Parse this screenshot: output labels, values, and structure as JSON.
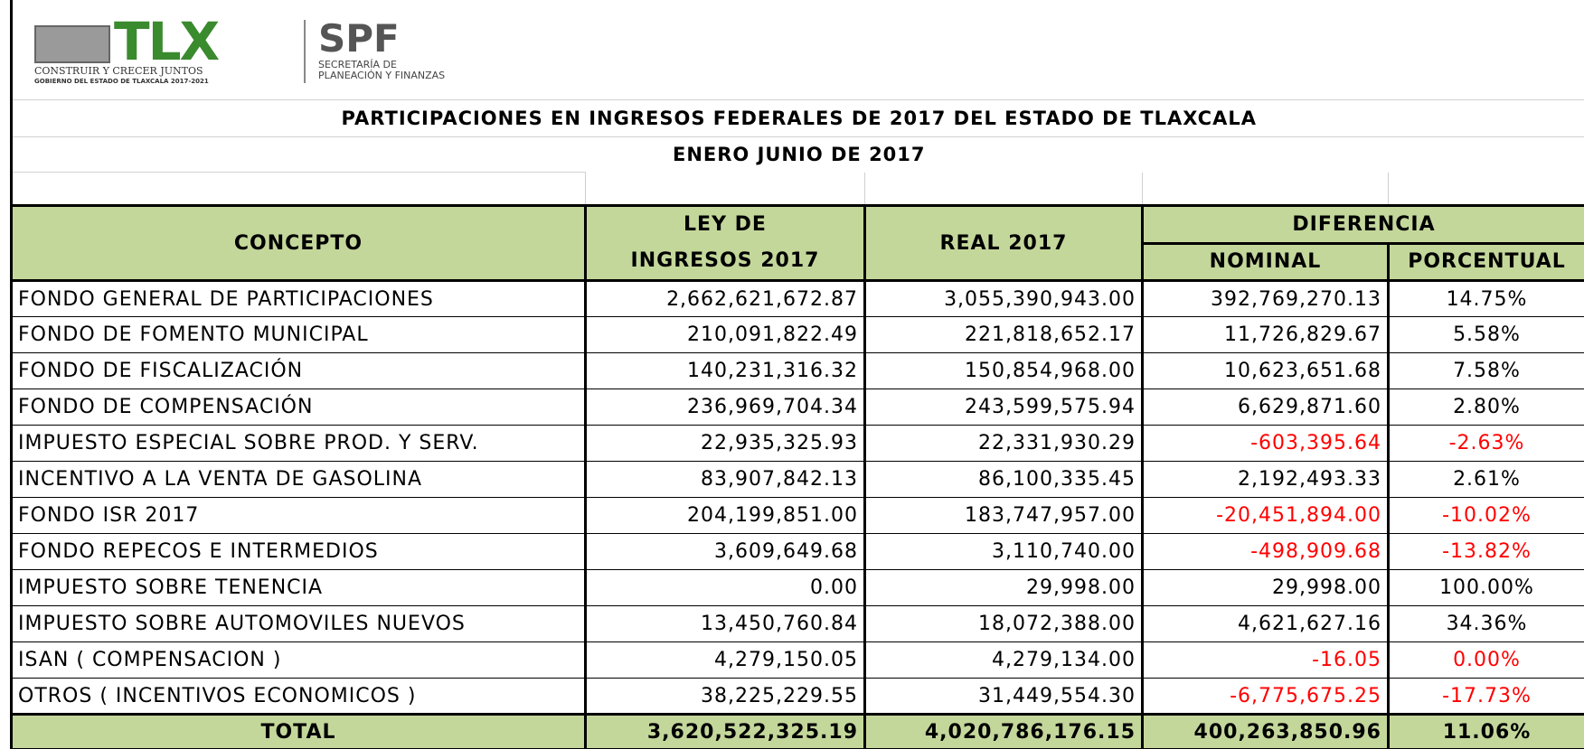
{
  "logo": {
    "brand": "TLX",
    "slogan": "CONSTRUIR Y CRECER JUNTOS",
    "government": "GOBIERNO DEL ESTADO DE TLAXCALA 2017-2021",
    "agency": "SPF",
    "agency_line1": "SECRETARÍA DE",
    "agency_line2": "PLANEACIÓN Y FINANZAS"
  },
  "title": "PARTICIPACIONES EN INGRESOS FEDERALES DE 2017 DEL ESTADO DE TLAXCALA",
  "subtitle": "ENERO JUNIO DE 2017",
  "header": {
    "concepto": "CONCEPTO",
    "ley": "LEY DE INGRESOS 2017",
    "real": "REAL 2017",
    "diferencia": "DIFERENCIA",
    "nominal": "NOMINAL",
    "porcentual": "PORCENTUAL"
  },
  "header_color": "#c4d79b",
  "rows": [
    {
      "concepto": "FONDO GENERAL DE PARTICIPACIONES",
      "ley": "2,662,621,672.87",
      "real": "3,055,390,943.00",
      "nominal": "392,769,270.13",
      "porcentual": "14.75%"
    },
    {
      "concepto": "FONDO DE FOMENTO MUNICIPAL",
      "ley": "210,091,822.49",
      "real": "221,818,652.17",
      "nominal": "11,726,829.67",
      "porcentual": "5.58%"
    },
    {
      "concepto": "FONDO DE FISCALIZACIÓN",
      "ley": "140,231,316.32",
      "real": "150,854,968.00",
      "nominal": "10,623,651.68",
      "porcentual": "7.58%"
    },
    {
      "concepto": "FONDO DE COMPENSACIÓN",
      "ley": "236,969,704.34",
      "real": "243,599,575.94",
      "nominal": "6,629,871.60",
      "porcentual": "2.80%"
    },
    {
      "concepto": "IMPUESTO ESPECIAL SOBRE PROD. Y SERV.",
      "ley": "22,935,325.93",
      "real": "22,331,930.29",
      "nominal": "-603,395.64",
      "porcentual": "-2.63%",
      "color": "#ff0000"
    },
    {
      "concepto": "INCENTIVO A LA VENTA DE GASOLINA",
      "ley": "83,907,842.13",
      "real": "86,100,335.45",
      "nominal": "2,192,493.33",
      "porcentual": "2.61%"
    },
    {
      "concepto": "FONDO ISR  2017",
      "ley": "204,199,851.00",
      "real": "183,747,957.00",
      "nominal": "-20,451,894.00",
      "porcentual": "-10.02%",
      "color": "#ff0000"
    },
    {
      "concepto": "FONDO REPECOS E INTERMEDIOS",
      "ley": "3,609,649.68",
      "real": "3,110,740.00",
      "nominal": "-498,909.68",
      "porcentual": "-13.82%",
      "color": "#ff0000"
    },
    {
      "concepto": "IMPUESTO SOBRE TENENCIA",
      "ley": "0.00",
      "real": "29,998.00",
      "nominal": "29,998.00",
      "porcentual": "100.00%"
    },
    {
      "concepto": "IMPUESTO SOBRE AUTOMOVILES NUEVOS",
      "ley": "13,450,760.84",
      "real": "18,072,388.00",
      "nominal": "4,621,627.16",
      "porcentual": "34.36%"
    },
    {
      "concepto": "ISAN ( COMPENSACION )",
      "ley": "4,279,150.05",
      "real": "4,279,134.00",
      "nominal": "-16.05",
      "porcentual": "0.00%",
      "color": "#ff0000"
    },
    {
      "concepto": "OTROS ( INCENTIVOS ECONOMICOS )",
      "ley": "38,225,229.55",
      "real": "31,449,554.30",
      "nominal": "-6,775,675.25",
      "porcentual": "-17.73%",
      "color": "#ff0000"
    }
  ],
  "total": {
    "concepto": "TOTAL",
    "ley": "3,620,522,325.19",
    "real": "4,020,786,176.15",
    "nominal": "400,263,850.96",
    "porcentual": "11.06%"
  }
}
